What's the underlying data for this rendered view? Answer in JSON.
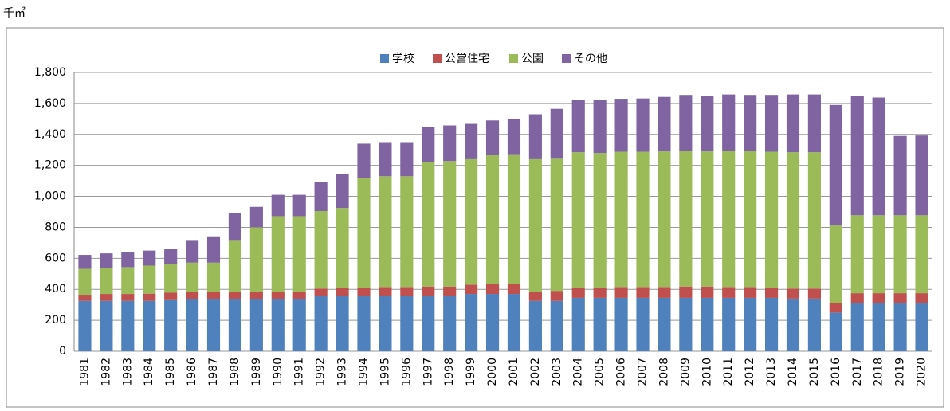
{
  "chart_data": {
    "type": "stacked_bar",
    "unit_label": "千㎡",
    "categories": [
      "1981",
      "1982",
      "1983",
      "1984",
      "1985",
      "1986",
      "1987",
      "1988",
      "1989",
      "1990",
      "1991",
      "1992",
      "1993",
      "1994",
      "1995",
      "1996",
      "1997",
      "1998",
      "1999",
      "2000",
      "2001",
      "2002",
      "2003",
      "2004",
      "2005",
      "2006",
      "2007",
      "2008",
      "2009",
      "2010",
      "2011",
      "2012",
      "2013",
      "2014",
      "2015",
      "2016",
      "2017",
      "2018",
      "2019",
      "2020"
    ],
    "series": [
      {
        "name": "学校",
        "color": "#4f81bd",
        "values": [
          325,
          325,
          325,
          325,
          330,
          335,
          335,
          335,
          335,
          335,
          335,
          355,
          355,
          355,
          360,
          360,
          360,
          360,
          370,
          370,
          370,
          325,
          325,
          345,
          345,
          345,
          345,
          345,
          345,
          345,
          345,
          345,
          345,
          340,
          340,
          250,
          310,
          310,
          310,
          310
        ]
      },
      {
        "name": "公営住宅",
        "color": "#c0504d",
        "values": [
          40,
          45,
          45,
          47,
          48,
          50,
          50,
          50,
          50,
          50,
          50,
          50,
          53,
          55,
          55,
          55,
          58,
          58,
          60,
          62,
          62,
          60,
          65,
          65,
          65,
          70,
          70,
          70,
          73,
          73,
          70,
          70,
          65,
          65,
          65,
          60,
          65,
          65,
          65,
          65
        ]
      },
      {
        "name": "公園",
        "color": "#9bbb59",
        "values": [
          167,
          170,
          173,
          181,
          184,
          187,
          187,
          333,
          415,
          487,
          487,
          500,
          517,
          710,
          715,
          715,
          804,
          810,
          815,
          833,
          840,
          860,
          858,
          875,
          870,
          873,
          873,
          875,
          874,
          872,
          880,
          877,
          878,
          880,
          880,
          502,
          503,
          503,
          503,
          503
        ]
      },
      {
        "name": "その他",
        "color": "#8064a2",
        "values": [
          90,
          92,
          97,
          97,
          98,
          146,
          170,
          175,
          132,
          138,
          138,
          190,
          220,
          220,
          220,
          220,
          228,
          230,
          223,
          225,
          225,
          285,
          317,
          335,
          340,
          342,
          344,
          352,
          363,
          360,
          363,
          363,
          367,
          373,
          373,
          778,
          772,
          760,
          512,
          515
        ]
      }
    ],
    "ylim": [
      0,
      1800
    ],
    "yticks": [
      0,
      200,
      400,
      600,
      800,
      {
        "value": 1000,
        "label": "1,000"
      },
      {
        "value": 1200,
        "label": "1,200"
      },
      {
        "value": 1400,
        "label": "1,400"
      },
      {
        "value": 1600,
        "label": "1,600"
      },
      {
        "value": 1800,
        "label": "1,800"
      }
    ],
    "grid": true,
    "legend": "top"
  }
}
